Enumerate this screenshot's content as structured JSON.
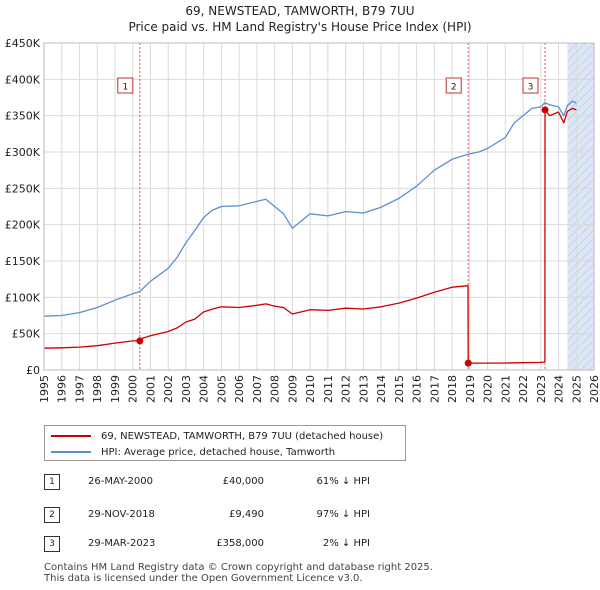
{
  "title": {
    "line1": "69, NEWSTEAD, TAMWORTH, B79 7UU",
    "line2": "Price paid vs. HM Land Registry's House Price Index (HPI)"
  },
  "colors": {
    "price_paid": "#cc0000",
    "hpi": "#5b8fd0",
    "shade": "#dde6f5",
    "grid": "#d9d9d9",
    "event_line": "#e05050"
  },
  "chart_data": {
    "type": "line",
    "title": "69, NEWSTEAD, TAMWORTH, B79 7UU",
    "subtitle": "Price paid vs. HM Land Registry's House Price Index (HPI)",
    "xlabel": "",
    "ylabel": "",
    "xlim": [
      1995,
      2026
    ],
    "ylim": [
      0,
      450000
    ],
    "x_ticks": [
      1995,
      1996,
      1997,
      1998,
      1999,
      2000,
      2001,
      2002,
      2003,
      2004,
      2005,
      2006,
      2007,
      2008,
      2009,
      2010,
      2011,
      2012,
      2013,
      2014,
      2015,
      2016,
      2017,
      2018,
      2019,
      2020,
      2021,
      2022,
      2023,
      2024,
      2025,
      2026
    ],
    "y_ticks": [
      {
        "value": 0,
        "label": "£0"
      },
      {
        "value": 50000,
        "label": "£50K"
      },
      {
        "value": 100000,
        "label": "£100K"
      },
      {
        "value": 150000,
        "label": "£150K"
      },
      {
        "value": 200000,
        "label": "£200K"
      },
      {
        "value": 250000,
        "label": "£250K"
      },
      {
        "value": 300000,
        "label": "£300K"
      },
      {
        "value": 350000,
        "label": "£350K"
      },
      {
        "value": 400000,
        "label": "£400K"
      },
      {
        "value": 450000,
        "label": "£450K"
      }
    ],
    "grid": true,
    "shaded_future_from": 2024.5,
    "series": [
      {
        "name": "69, NEWSTEAD, TAMWORTH, B79 7UU (detached house)",
        "color": "#cc0000",
        "x": [
          1995.0,
          1996.0,
          1997.0,
          1998.0,
          1999.0,
          2000.0,
          2000.4,
          2000.45,
          2001.0,
          2002.0,
          2002.5,
          2003.0,
          2003.5,
          2004.0,
          2004.5,
          2005.0,
          2006.0,
          2007.0,
          2007.5,
          2008.0,
          2008.5,
          2009.0,
          2009.5,
          2010.0,
          2011.0,
          2012.0,
          2013.0,
          2014.0,
          2015.0,
          2016.0,
          2017.0,
          2018.0,
          2018.9,
          2018.91,
          2019.5,
          2020.0,
          2021.0,
          2022.0,
          2023.0,
          2023.23,
          2023.24,
          2023.5,
          2023.8,
          2024.0,
          2024.3,
          2024.5,
          2024.8,
          2025.0
        ],
        "y": [
          30000,
          30500,
          31500,
          33500,
          37000,
          40000,
          40000,
          43000,
          47000,
          53000,
          58000,
          66000,
          70000,
          80000,
          84000,
          87000,
          86000,
          89000,
          91000,
          88000,
          86000,
          77000,
          80000,
          83000,
          82000,
          85000,
          84000,
          87000,
          92000,
          99000,
          107000,
          114000,
          116000,
          9490,
          9490,
          9500,
          9700,
          10000,
          10500,
          11000,
          358000,
          350000,
          353000,
          355000,
          340000,
          356000,
          360000,
          358000
        ]
      },
      {
        "name": "HPI: Average price, detached house, Tamworth",
        "color": "#5b8fd0",
        "x": [
          1995.0,
          1996.0,
          1997.0,
          1998.0,
          1999.0,
          2000.0,
          2000.4,
          2001.0,
          2002.0,
          2002.5,
          2003.0,
          2003.5,
          2004.0,
          2004.5,
          2005.0,
          2006.0,
          2007.0,
          2007.5,
          2008.0,
          2008.5,
          2009.0,
          2009.5,
          2010.0,
          2011.0,
          2012.0,
          2013.0,
          2014.0,
          2015.0,
          2016.0,
          2017.0,
          2018.0,
          2018.9,
          2019.5,
          2020.0,
          2021.0,
          2021.5,
          2022.0,
          2022.5,
          2023.0,
          2023.23,
          2023.5,
          2024.0,
          2024.3,
          2024.5,
          2024.8,
          2025.0
        ],
        "y": [
          74000,
          75000,
          79000,
          86000,
          96000,
          105000,
          108000,
          122000,
          140000,
          155000,
          175000,
          192000,
          210000,
          220000,
          225000,
          226000,
          232000,
          235000,
          225000,
          215000,
          195000,
          205000,
          215000,
          212000,
          218000,
          216000,
          224000,
          236000,
          253000,
          275000,
          290000,
          297000,
          300000,
          305000,
          320000,
          340000,
          350000,
          360000,
          362000,
          368000,
          365000,
          362000,
          350000,
          364000,
          370000,
          367000
        ]
      }
    ],
    "events": [
      {
        "label": "1",
        "x": 2000.4,
        "price": 40000
      },
      {
        "label": "2",
        "x": 2018.91,
        "price": 9490
      },
      {
        "label": "3",
        "x": 2023.24,
        "price": 358000
      }
    ]
  },
  "legend": {
    "items": [
      {
        "label": "69, NEWSTEAD, TAMWORTH, B79 7UU (detached house)"
      },
      {
        "label": "HPI: Average price, detached house, Tamworth"
      }
    ]
  },
  "transactions": [
    {
      "num": "1",
      "date": "26-MAY-2000",
      "price": "£40,000",
      "hpi": "61% ↓ HPI"
    },
    {
      "num": "2",
      "date": "29-NOV-2018",
      "price": "£9,490",
      "hpi": "97% ↓ HPI"
    },
    {
      "num": "3",
      "date": "29-MAR-2023",
      "price": "£358,000",
      "hpi": "2% ↓ HPI"
    }
  ],
  "footer": {
    "line1": "Contains HM Land Registry data © Crown copyright and database right 2025.",
    "line2": "This data is licensed under the Open Government Licence v3.0."
  }
}
